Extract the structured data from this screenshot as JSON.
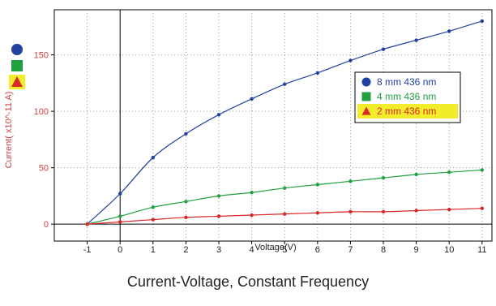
{
  "chart_data": {
    "type": "line",
    "title": "Current-Voltage, Constant Frequency",
    "xlabel": "Voltage(V)",
    "ylabel": "Current( x10^-11 A)",
    "xlim": [
      -2,
      11.3
    ],
    "ylim": [
      -15,
      190
    ],
    "x_ticks": [
      "-1",
      "0",
      "1",
      "2",
      "3",
      "4",
      "5",
      "6",
      "7",
      "8",
      "9",
      "10",
      "11"
    ],
    "y_ticks": [
      "0",
      "50",
      "100",
      "150"
    ],
    "grid": true,
    "legend_position": "upper-right",
    "x": [
      -1,
      0,
      1,
      2,
      3,
      4,
      5,
      6,
      7,
      8,
      9,
      10,
      11
    ],
    "series": [
      {
        "name": "8 mm 436 nm",
        "color": "#2240a0",
        "marker": "circle",
        "values": [
          0,
          27,
          59,
          80,
          97,
          111,
          124,
          134,
          145,
          155,
          163,
          171,
          180
        ]
      },
      {
        "name": "4 mm 436 nm",
        "color": "#20a040",
        "marker": "square",
        "values": [
          0,
          7,
          15,
          20,
          25,
          28,
          32,
          35,
          38,
          41,
          44,
          46,
          48
        ]
      },
      {
        "name": "2 mm 436 nm",
        "color": "#d82828",
        "marker": "triangle",
        "values": [
          0,
          2,
          4,
          6,
          7,
          8,
          9,
          10,
          11,
          11,
          12,
          13,
          14
        ]
      }
    ]
  },
  "colors": {
    "axis_label": "#d04040",
    "tick_label": "#222222",
    "grid": "#999999",
    "highlight": "#f2ec2a"
  }
}
